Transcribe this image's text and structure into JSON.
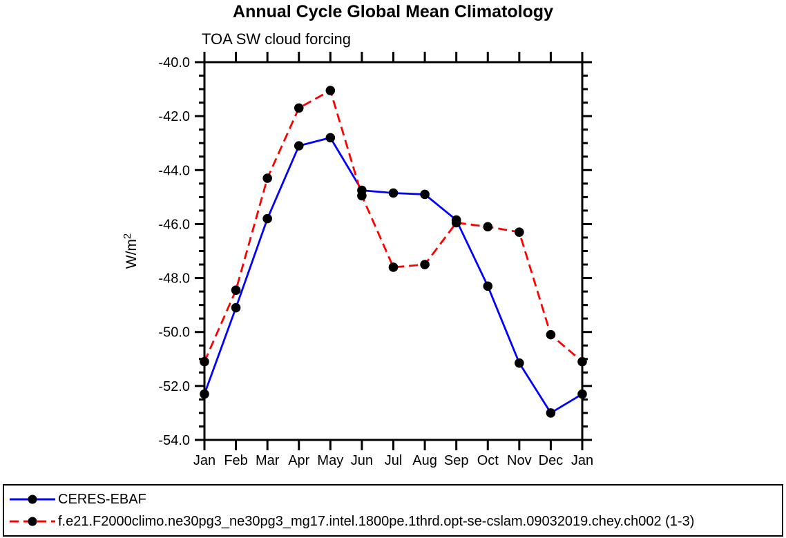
{
  "chart_data": {
    "type": "line",
    "title": "Annual Cycle Global Mean Climatology",
    "subtitle": "TOA SW cloud forcing",
    "ylabel_base": "W/m",
    "ylabel_exponent": "2",
    "x_categories": [
      "Jan",
      "Feb",
      "Mar",
      "Apr",
      "May",
      "Jun",
      "Jul",
      "Aug",
      "Sep",
      "Oct",
      "Nov",
      "Dec",
      "Jan"
    ],
    "ylim": [
      -54.0,
      -40.0
    ],
    "ytick_major_step": 2.0,
    "ytick_minor_step": 0.5,
    "ytick_labels": [
      "-40.0",
      "-42.0",
      "-44.0",
      "-46.0",
      "-48.0",
      "-50.0",
      "-52.0",
      "-54.0"
    ],
    "grid": false,
    "legend_position": "bottom-box",
    "frame_color": "#000000",
    "marker_color": "#000000",
    "series": [
      {
        "name": "CERES-EBAF",
        "color": "#0000ff",
        "line_style": "solid",
        "marker": "circle",
        "values": [
          -52.3,
          -49.1,
          -45.8,
          -43.1,
          -42.8,
          -44.75,
          -44.85,
          -44.9,
          -45.85,
          -48.3,
          -51.15,
          -53.0,
          -52.3
        ]
      },
      {
        "name": "f.e21.F2000climo.ne30pg3_ne30pg3_mg17.intel.1800pe.1thrd.opt-se-cslam.09032019.chey.ch002 (1-3)",
        "color": "#ff0000",
        "line_style": "dashed",
        "marker": "circle",
        "values": [
          -51.1,
          -48.45,
          -44.3,
          -41.7,
          -41.05,
          -44.95,
          -47.6,
          -47.5,
          -45.95,
          -46.1,
          -46.3,
          -50.1,
          -51.1
        ]
      }
    ]
  }
}
